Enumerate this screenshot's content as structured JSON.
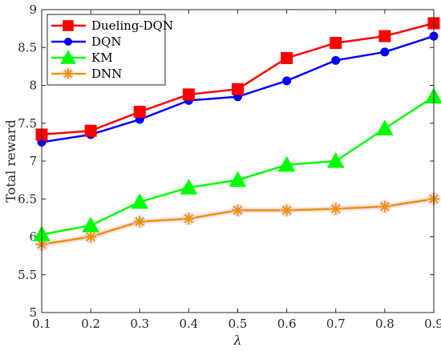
{
  "chart_data": {
    "type": "line",
    "title": "",
    "xlabel": "λ",
    "ylabel": "Total reward",
    "x": [
      0.1,
      0.2,
      0.3,
      0.4,
      0.5,
      0.6,
      0.7,
      0.8,
      0.9
    ],
    "xlim": [
      0.1,
      0.9
    ],
    "ylim": [
      5,
      9
    ],
    "xticks": [
      0.1,
      0.2,
      0.3,
      0.4,
      0.5,
      0.6,
      0.7,
      0.8,
      0.9
    ],
    "xtick_labels": [
      "0.1",
      "0.2",
      "0.3",
      "0.4",
      "0.5",
      "0.6",
      "0.7",
      "0.8",
      "0.9"
    ],
    "yticks": [
      5,
      5.5,
      6,
      6.5,
      7,
      7.5,
      8,
      8.5,
      9
    ],
    "ytick_labels": [
      "5",
      "5.5",
      "6",
      "6.5",
      "7",
      "7.5",
      "8",
      "8.5",
      "9"
    ],
    "grid": false,
    "legend_position": "top-left",
    "series": [
      {
        "name": "Dueling-DQN",
        "color": "#ff0000",
        "marker": "square",
        "values": [
          7.35,
          7.4,
          7.65,
          7.88,
          7.95,
          8.36,
          8.56,
          8.65,
          8.82
        ]
      },
      {
        "name": "DQN",
        "color": "#0000ff",
        "marker": "circle",
        "values": [
          7.25,
          7.35,
          7.55,
          7.8,
          7.85,
          8.06,
          8.33,
          8.44,
          8.65
        ]
      },
      {
        "name": "KM",
        "color": "#00ff00",
        "marker": "triangle",
        "values": [
          6.03,
          6.15,
          6.46,
          6.65,
          6.75,
          6.95,
          7.0,
          7.43,
          7.85
        ]
      },
      {
        "name": "DNN",
        "color": "#e69500",
        "marker": "asterisk",
        "values": [
          5.9,
          6.0,
          6.2,
          6.24,
          6.35,
          6.35,
          6.37,
          6.4,
          6.5
        ]
      }
    ]
  }
}
